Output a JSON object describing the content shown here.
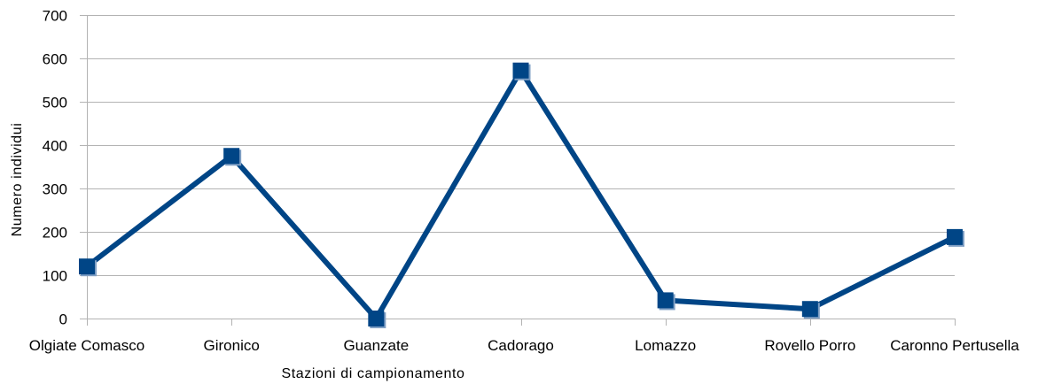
{
  "chart_data": {
    "type": "line",
    "categories": [
      "Olgiate Comasco",
      "Gironico",
      "Guanzate",
      "Cadorago",
      "Lomazzo",
      "Rovello Porro",
      "Caronno Pertusella"
    ],
    "series": [
      {
        "values": [
          120,
          375,
          0,
          572,
          42,
          22,
          188
        ],
        "color": "#004586"
      }
    ],
    "xlabel": "Stazioni di campionamento",
    "ylabel": "Numero individui",
    "ylim": [
      0,
      700
    ],
    "yticks": [
      0,
      100,
      200,
      300,
      400,
      500,
      600,
      700
    ],
    "grid": true,
    "marker": "square",
    "grid_color": "#b3b3b3"
  }
}
